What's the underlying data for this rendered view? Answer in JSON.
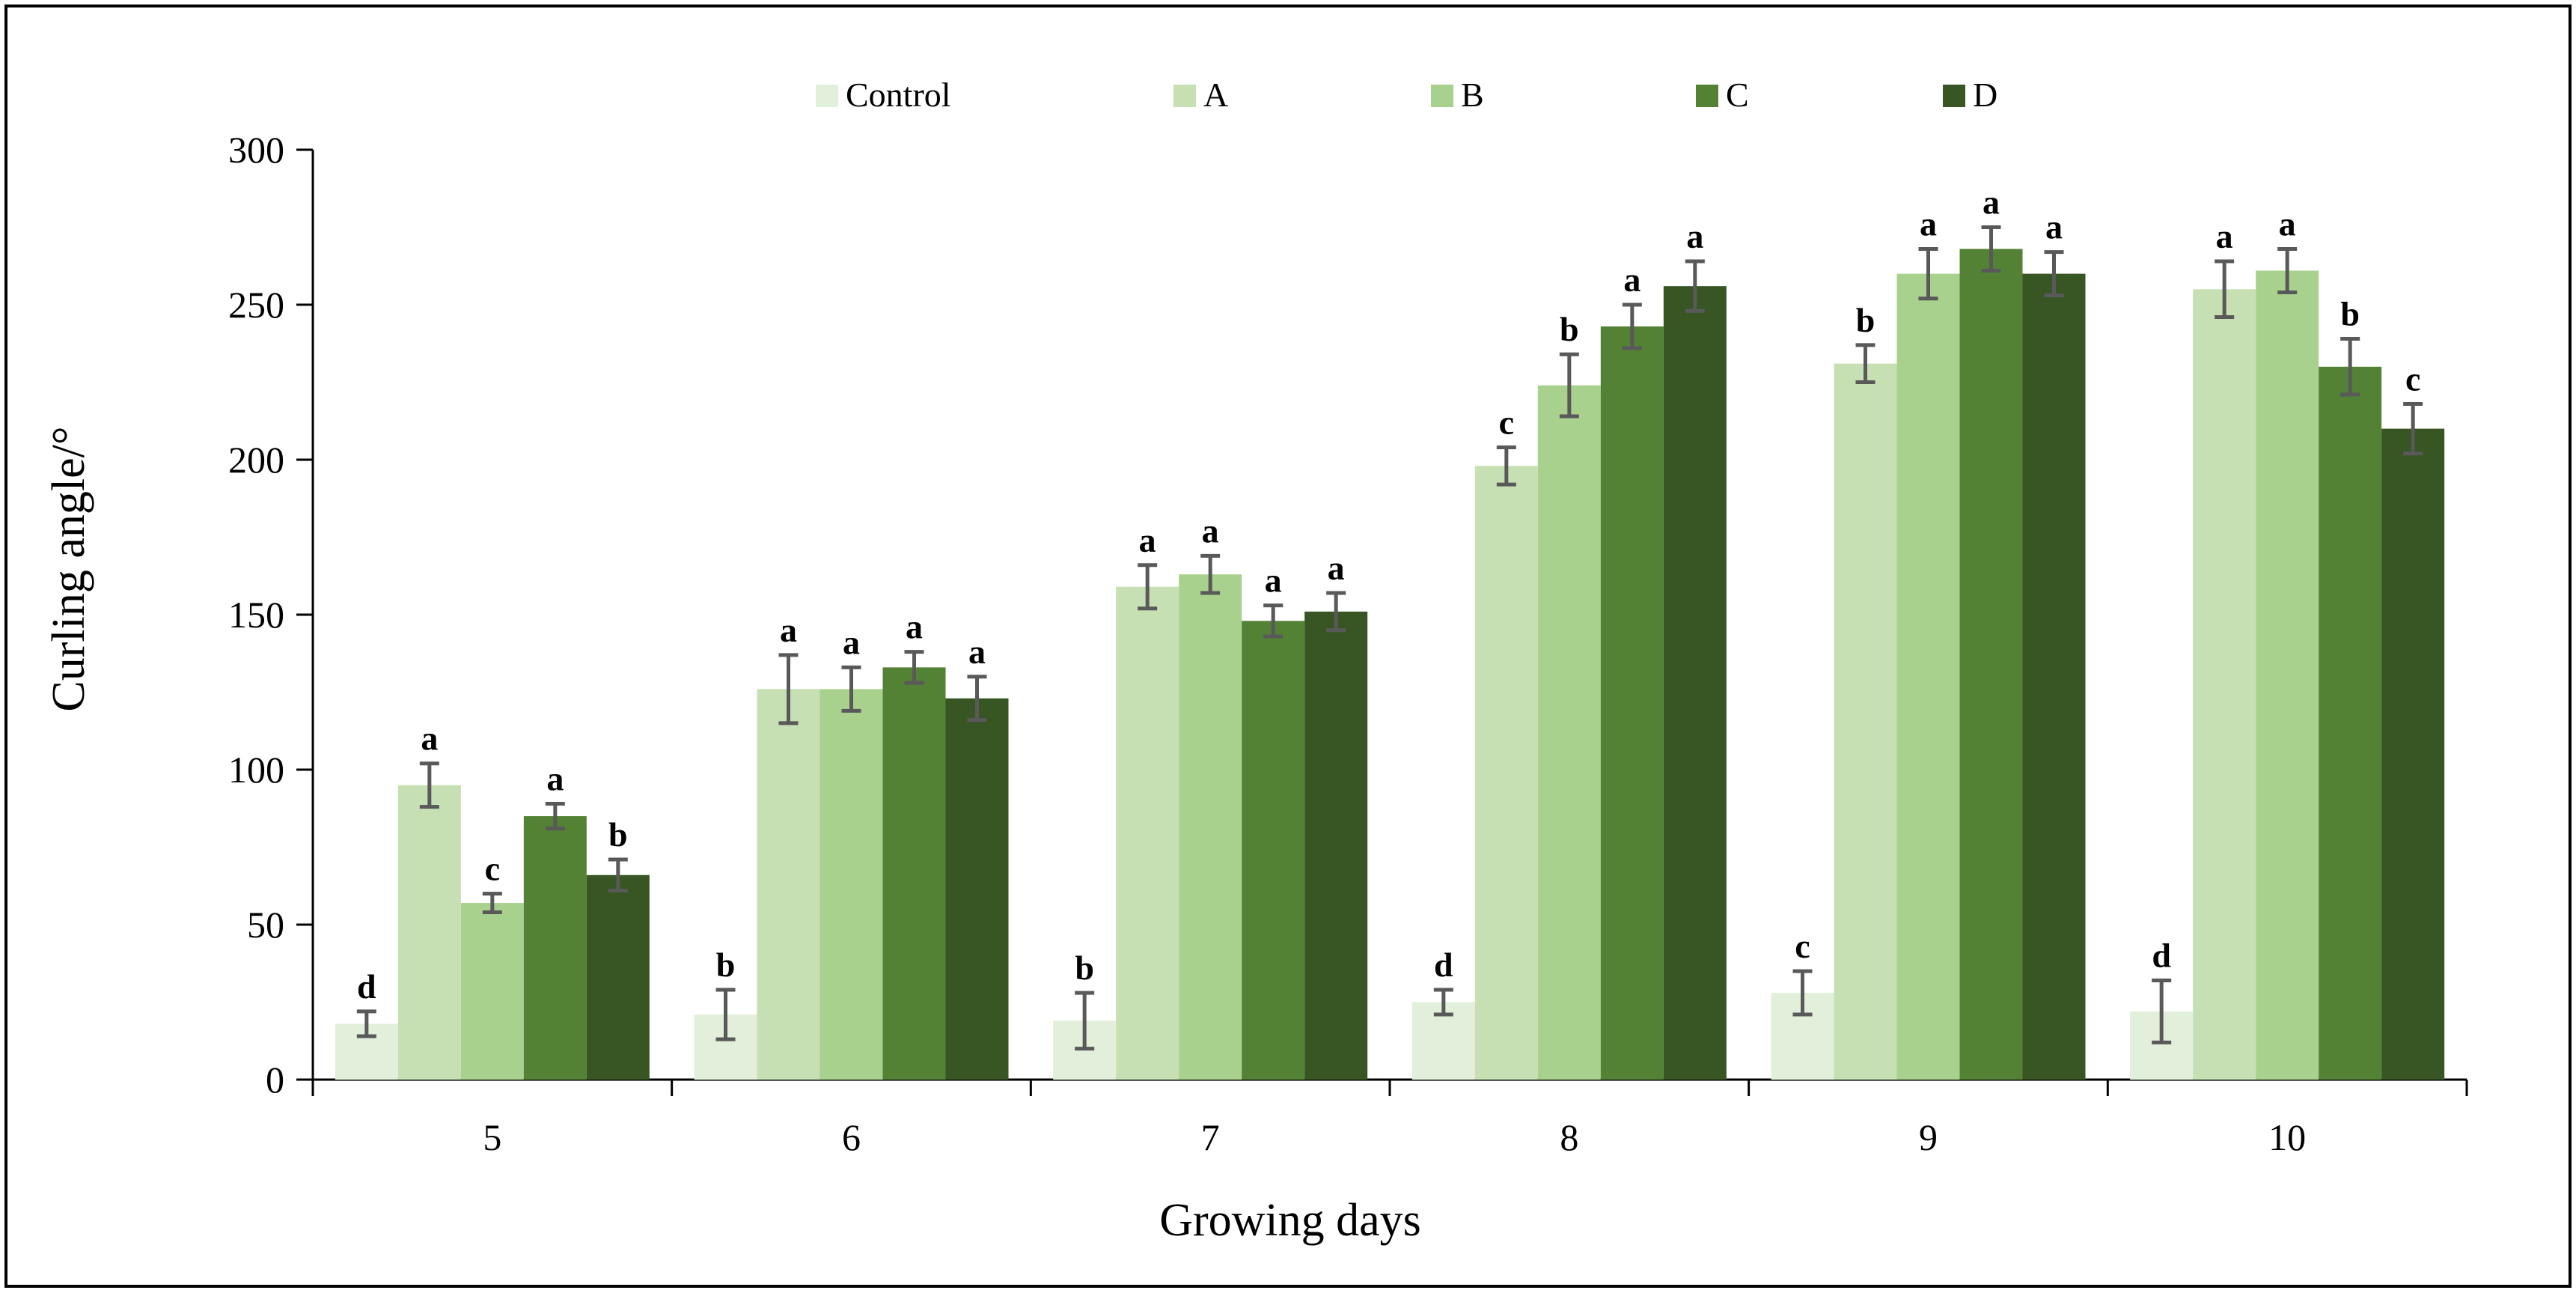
{
  "chart_data": {
    "type": "bar",
    "title": "",
    "xlabel": "Growing days",
    "ylabel": "Curling angle/°",
    "ylim": [
      0,
      300
    ],
    "yticks": [
      0,
      50,
      100,
      150,
      200,
      250,
      300
    ],
    "grid": false,
    "legend_position": "top",
    "categories": [
      "5",
      "6",
      "7",
      "8",
      "9",
      "10"
    ],
    "series": [
      {
        "name": "Control",
        "color": "#e2efda",
        "values": [
          18,
          21,
          19,
          25,
          28,
          22
        ],
        "errors": [
          4,
          8,
          9,
          4,
          7,
          10
        ],
        "labels": [
          "d",
          "b",
          "b",
          "d",
          "c",
          "d"
        ]
      },
      {
        "name": "A",
        "color": "#c6e0b4",
        "values": [
          95,
          126,
          159,
          198,
          231,
          255
        ],
        "errors": [
          7,
          11,
          7,
          6,
          6,
          9
        ],
        "labels": [
          "a",
          "a",
          "a",
          "c",
          "b",
          "a"
        ]
      },
      {
        "name": "B",
        "color": "#a9d18e",
        "values": [
          57,
          126,
          163,
          224,
          260,
          261
        ],
        "errors": [
          3,
          7,
          6,
          10,
          8,
          7
        ],
        "labels": [
          "c",
          "a",
          "a",
          "b",
          "a",
          "a"
        ]
      },
      {
        "name": "C",
        "color": "#548235",
        "values": [
          85,
          133,
          148,
          243,
          268,
          230
        ],
        "errors": [
          4,
          5,
          5,
          7,
          7,
          9
        ],
        "labels": [
          "a",
          "a",
          "a",
          "a",
          "a",
          "b"
        ]
      },
      {
        "name": "D",
        "color": "#375623",
        "values": [
          66,
          123,
          151,
          256,
          260,
          210
        ],
        "errors": [
          5,
          7,
          6,
          8,
          7,
          8
        ],
        "labels": [
          "b",
          "a",
          "a",
          "a",
          "a",
          "c"
        ]
      }
    ]
  }
}
